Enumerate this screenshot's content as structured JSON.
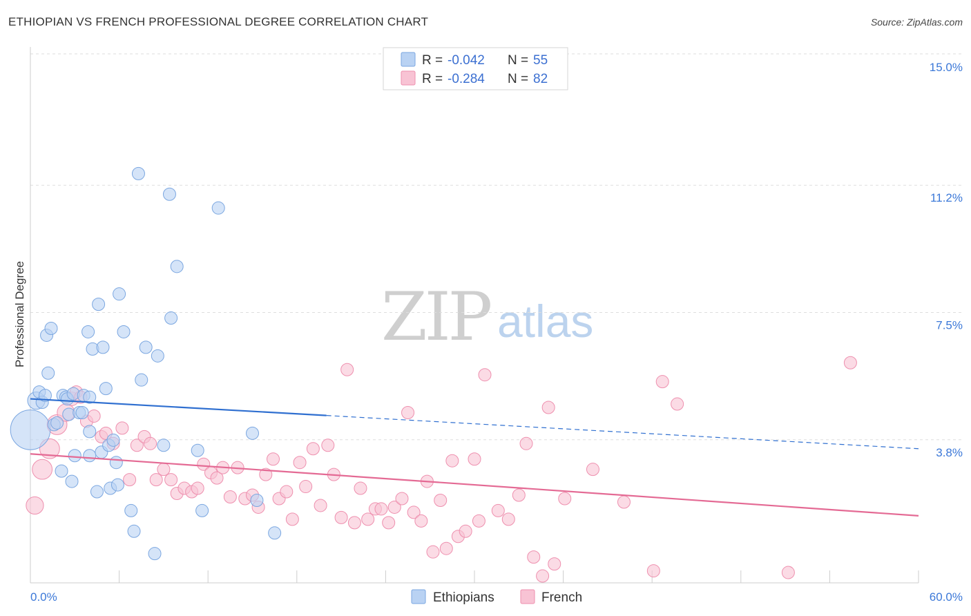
{
  "header": {
    "title": "ETHIOPIAN VS FRENCH PROFESSIONAL DEGREE CORRELATION CHART",
    "source": "Source: ZipAtlas.com"
  },
  "watermark": {
    "zip": "ZIP",
    "atlas": "atlas"
  },
  "colors": {
    "ethiopians_fill": "#b9d2f3",
    "ethiopians_stroke": "#7aa6e0",
    "ethiopians_line": "#2f6fd0",
    "french_fill": "#f8c3d4",
    "french_stroke": "#ee8fae",
    "french_line": "#e46a94",
    "tick_label": "#3b78d8",
    "grid": "#dddddd"
  },
  "legend": {
    "rows": [
      {
        "r_label": "R = ",
        "r_value": "-0.042",
        "n_label": "N = ",
        "n_value": "55"
      },
      {
        "r_label": "R = ",
        "r_value": "-0.284",
        "n_label": "N = ",
        "n_value": "82"
      }
    ]
  },
  "chart_data": {
    "type": "scatter",
    "title": "ETHIOPIAN VS FRENCH PROFESSIONAL DEGREE CORRELATION CHART",
    "xlabel": "",
    "ylabel": "Professional Degree",
    "xlim": [
      0,
      60
    ],
    "ylim": [
      0,
      15.5
    ],
    "x_tick_labels": [
      "0.0%",
      "60.0%"
    ],
    "y_ticks": [
      3.8,
      7.5,
      11.2,
      15.0
    ],
    "y_tick_labels": [
      "3.8%",
      "7.5%",
      "11.2%",
      "15.0%"
    ],
    "legend_position": "top-center",
    "series": [
      {
        "name": "Ethiopians",
        "r": -0.042,
        "n": 55,
        "trend": {
          "x0": 0,
          "y0": 5.35,
          "x_solid_end": 20,
          "x1": 60,
          "y1": 3.9
        },
        "points": [
          [
            0.0,
            4.45,
            3.2
          ],
          [
            0.4,
            5.3,
            1.4
          ],
          [
            0.6,
            5.55,
            1.0
          ],
          [
            0.8,
            5.25,
            1.0
          ],
          [
            1.0,
            5.45,
            1.0
          ],
          [
            1.1,
            7.2,
            1.0
          ],
          [
            1.2,
            6.1,
            1.0
          ],
          [
            1.4,
            7.4,
            1.0
          ],
          [
            1.6,
            4.6,
            1.0
          ],
          [
            1.8,
            4.65,
            1.0
          ],
          [
            2.1,
            3.25,
            1.0
          ],
          [
            2.2,
            5.45,
            1.0
          ],
          [
            2.4,
            5.4,
            1.0
          ],
          [
            2.5,
            5.35,
            1.0
          ],
          [
            2.6,
            4.9,
            1.0
          ],
          [
            2.8,
            2.95,
            1.0
          ],
          [
            2.9,
            5.5,
            1.0
          ],
          [
            3.0,
            3.7,
            1.0
          ],
          [
            3.3,
            4.95,
            1.0
          ],
          [
            3.5,
            4.95,
            1.0
          ],
          [
            3.6,
            5.45,
            1.0
          ],
          [
            3.9,
            7.3,
            1.0
          ],
          [
            4.0,
            3.7,
            1.0
          ],
          [
            4.0,
            5.4,
            1.0
          ],
          [
            4.0,
            4.4,
            1.0
          ],
          [
            4.2,
            6.8,
            1.0
          ],
          [
            4.5,
            2.65,
            1.0
          ],
          [
            4.6,
            8.1,
            1.0
          ],
          [
            4.8,
            3.8,
            1.0
          ],
          [
            4.9,
            6.85,
            1.0
          ],
          [
            5.1,
            5.65,
            1.0
          ],
          [
            5.3,
            4.0,
            1.0
          ],
          [
            5.4,
            2.75,
            1.0
          ],
          [
            5.6,
            4.15,
            1.0
          ],
          [
            5.8,
            3.5,
            1.0
          ],
          [
            5.9,
            2.85,
            1.0
          ],
          [
            6.0,
            8.4,
            1.0
          ],
          [
            6.3,
            7.3,
            1.0
          ],
          [
            6.8,
            2.1,
            1.0
          ],
          [
            7.0,
            1.5,
            1.0
          ],
          [
            7.3,
            11.9,
            1.0
          ],
          [
            7.5,
            5.9,
            1.0
          ],
          [
            7.8,
            6.85,
            1.0
          ],
          [
            8.4,
            0.85,
            1.0
          ],
          [
            8.6,
            6.6,
            1.0
          ],
          [
            9.0,
            4.0,
            1.0
          ],
          [
            9.4,
            11.3,
            1.0
          ],
          [
            9.5,
            7.7,
            1.0
          ],
          [
            9.9,
            9.2,
            1.0
          ],
          [
            11.3,
            3.85,
            1.0
          ],
          [
            11.6,
            2.1,
            1.0
          ],
          [
            12.7,
            10.9,
            1.0
          ],
          [
            15.0,
            4.35,
            1.0
          ],
          [
            15.3,
            2.4,
            1.0
          ],
          [
            16.5,
            1.45,
            1.0
          ]
        ]
      },
      {
        "name": "French",
        "r": -0.284,
        "n": 82,
        "trend": {
          "x0": 0,
          "y0": 3.75,
          "x1": 60,
          "y1": 1.95
        },
        "points": [
          [
            0.3,
            2.25,
            1.4
          ],
          [
            0.8,
            3.3,
            1.6
          ],
          [
            1.3,
            3.9,
            1.6
          ],
          [
            1.8,
            4.6,
            1.6
          ],
          [
            2.4,
            4.95,
            1.4
          ],
          [
            2.8,
            5.35,
            1.1
          ],
          [
            3.1,
            5.55,
            1.0
          ],
          [
            3.4,
            5.4,
            1.0
          ],
          [
            3.8,
            4.7,
            1.0
          ],
          [
            4.3,
            4.85,
            1.0
          ],
          [
            4.8,
            4.25,
            1.0
          ],
          [
            5.1,
            4.35,
            1.0
          ],
          [
            5.6,
            4.05,
            1.0
          ],
          [
            6.2,
            4.5,
            1.0
          ],
          [
            6.7,
            3.0,
            1.0
          ],
          [
            7.2,
            4.0,
            1.0
          ],
          [
            7.7,
            4.25,
            1.0
          ],
          [
            8.1,
            4.05,
            1.0
          ],
          [
            8.5,
            3.0,
            1.0
          ],
          [
            9.0,
            3.3,
            1.0
          ],
          [
            9.5,
            3.0,
            1.0
          ],
          [
            9.9,
            2.6,
            1.0
          ],
          [
            10.4,
            2.75,
            1.0
          ],
          [
            10.9,
            2.65,
            1.0
          ],
          [
            11.3,
            2.75,
            1.0
          ],
          [
            11.7,
            3.45,
            1.0
          ],
          [
            12.2,
            3.2,
            1.0
          ],
          [
            12.6,
            3.05,
            1.0
          ],
          [
            13.0,
            3.35,
            1.0
          ],
          [
            13.5,
            2.5,
            1.0
          ],
          [
            14.0,
            3.35,
            1.0
          ],
          [
            14.5,
            2.45,
            1.0
          ],
          [
            15.0,
            2.55,
            1.0
          ],
          [
            15.4,
            2.2,
            1.0
          ],
          [
            15.9,
            3.15,
            1.0
          ],
          [
            16.4,
            3.6,
            1.0
          ],
          [
            16.8,
            2.45,
            1.0
          ],
          [
            17.3,
            2.65,
            1.0
          ],
          [
            17.7,
            1.85,
            1.0
          ],
          [
            18.2,
            3.5,
            1.0
          ],
          [
            18.6,
            2.8,
            1.0
          ],
          [
            19.1,
            3.9,
            1.0
          ],
          [
            19.6,
            2.25,
            1.0
          ],
          [
            20.1,
            4.0,
            1.0
          ],
          [
            20.5,
            3.15,
            1.0
          ],
          [
            21.0,
            1.9,
            1.0
          ],
          [
            21.4,
            6.2,
            1.0
          ],
          [
            21.9,
            1.75,
            1.0
          ],
          [
            22.3,
            2.75,
            1.0
          ],
          [
            22.8,
            1.85,
            1.0
          ],
          [
            23.3,
            2.15,
            1.0
          ],
          [
            23.7,
            2.15,
            1.0
          ],
          [
            24.2,
            1.75,
            1.0
          ],
          [
            24.6,
            2.2,
            1.0
          ],
          [
            25.1,
            2.45,
            1.0
          ],
          [
            25.5,
            4.95,
            1.0
          ],
          [
            25.9,
            2.05,
            1.0
          ],
          [
            26.4,
            1.8,
            1.0
          ],
          [
            26.8,
            2.95,
            1.0
          ],
          [
            27.2,
            0.9,
            1.0
          ],
          [
            27.7,
            2.4,
            1.0
          ],
          [
            28.1,
            1.0,
            1.0
          ],
          [
            28.5,
            3.55,
            1.0
          ],
          [
            28.9,
            1.35,
            1.0
          ],
          [
            29.4,
            1.5,
            1.0
          ],
          [
            30.0,
            3.6,
            1.0
          ],
          [
            30.3,
            1.8,
            1.0
          ],
          [
            30.7,
            6.05,
            1.0
          ],
          [
            31.6,
            2.1,
            1.0
          ],
          [
            32.3,
            1.85,
            1.0
          ],
          [
            33.0,
            2.55,
            1.0
          ],
          [
            33.5,
            4.05,
            1.0
          ],
          [
            34.0,
            0.75,
            1.0
          ],
          [
            34.6,
            0.2,
            1.0
          ],
          [
            35.0,
            5.1,
            1.0
          ],
          [
            35.4,
            0.55,
            1.0
          ],
          [
            36.1,
            2.45,
            1.0
          ],
          [
            38.0,
            3.3,
            1.0
          ],
          [
            40.1,
            2.35,
            1.0
          ],
          [
            42.1,
            0.35,
            1.0
          ],
          [
            42.7,
            5.85,
            1.0
          ],
          [
            43.7,
            5.2,
            1.0
          ],
          [
            51.2,
            0.3,
            1.0
          ],
          [
            55.4,
            6.4,
            1.0
          ]
        ]
      }
    ]
  },
  "bottom_legend": [
    {
      "label": "Ethiopians"
    },
    {
      "label": "French"
    }
  ]
}
